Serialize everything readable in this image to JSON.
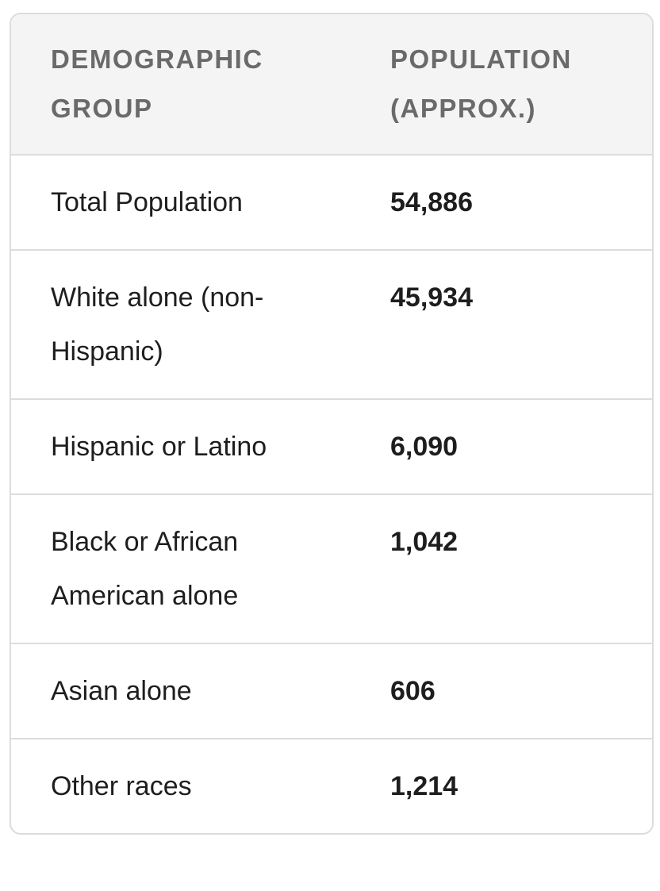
{
  "table": {
    "headers": [
      "DEMOGRAPHIC GROUP",
      "POPULATION (APPROX.)"
    ],
    "rows": [
      [
        "Total Population",
        "54,886"
      ],
      [
        "White alone (non-Hispanic)",
        "45,934"
      ],
      [
        "Hispanic or Latino",
        "6,090"
      ],
      [
        "Black or African American alone",
        "1,042"
      ],
      [
        "Asian alone",
        "606"
      ],
      [
        "Other races",
        "1,214"
      ]
    ]
  }
}
